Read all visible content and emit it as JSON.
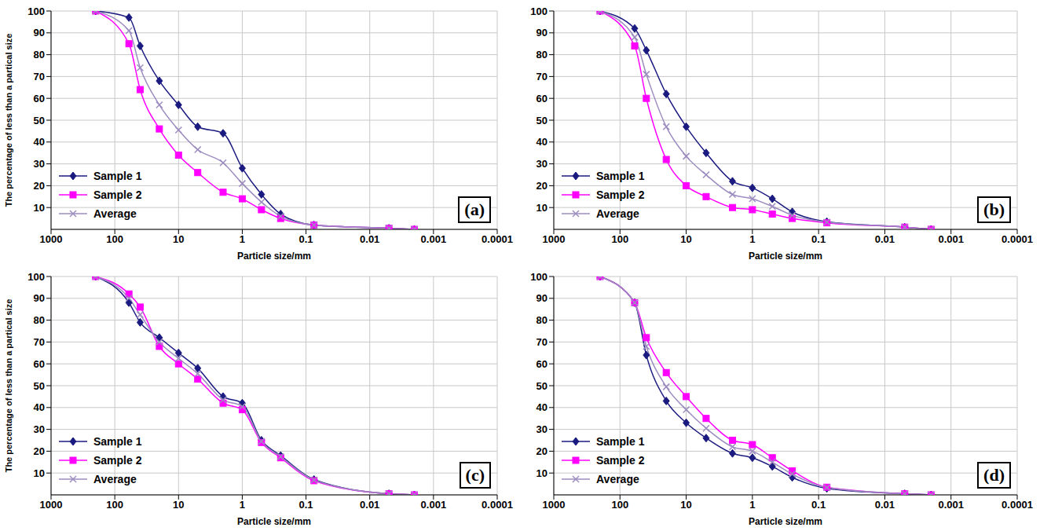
{
  "chart_data": [
    {
      "type": "line",
      "panel_label": "(a)",
      "x_label": "Particle size/mm",
      "y_label": "The percentage of less than a partical size",
      "log": "x",
      "grid": true,
      "legend": "lower left",
      "x": [
        200,
        60,
        40,
        20,
        10,
        5,
        2,
        1,
        0.5,
        0.25,
        0.075,
        0.005,
        0.002
      ],
      "xlim": [
        1000,
        0.0001
      ],
      "xticks": [
        1000,
        100,
        10,
        1,
        0.1,
        0.01,
        0.001,
        0.0001
      ],
      "ylim": [
        0,
        100
      ],
      "yticks": [
        10,
        20,
        30,
        40,
        50,
        60,
        70,
        80,
        90,
        100
      ],
      "series": [
        {
          "name": "Sample 1",
          "color": "#1a1a80",
          "marker": "diamond",
          "values": [
            100,
            97,
            84,
            68,
            57,
            47,
            44,
            28,
            16,
            7,
            2,
            0.5,
            0
          ]
        },
        {
          "name": "Sample 2",
          "color": "#ff00ff",
          "marker": "square",
          "values": [
            100,
            85,
            64,
            46,
            34,
            26,
            17,
            14,
            9,
            5,
            2,
            0.5,
            0
          ]
        },
        {
          "name": "Average",
          "color": "#9c8cc0",
          "marker": "x",
          "values": [
            100,
            91,
            74,
            57,
            45.5,
            36.5,
            30.5,
            21,
            12.5,
            6,
            2,
            0.5,
            0
          ]
        }
      ]
    },
    {
      "type": "line",
      "panel_label": "(b)",
      "x_label": "Particle size/mm",
      "log": "x",
      "grid": true,
      "legend": "lower left",
      "x": [
        200,
        60,
        40,
        20,
        10,
        5,
        2,
        1,
        0.5,
        0.25,
        0.075,
        0.005,
        0.002
      ],
      "xlim": [
        1000,
        0.0001
      ],
      "xticks": [
        1000,
        100,
        10,
        1,
        0.1,
        0.01,
        0.001,
        0.0001
      ],
      "ylim": [
        0,
        100
      ],
      "yticks": [
        10,
        20,
        30,
        40,
        50,
        60,
        70,
        80,
        90,
        100
      ],
      "series": [
        {
          "name": "Sample 1",
          "color": "#1a1a80",
          "marker": "diamond",
          "values": [
            100,
            92,
            82,
            62,
            47,
            35,
            22,
            19,
            14,
            8,
            3.5,
            1,
            0
          ]
        },
        {
          "name": "Sample 2",
          "color": "#ff00ff",
          "marker": "square",
          "values": [
            100,
            84,
            60,
            32,
            20,
            15,
            10,
            9,
            7,
            5,
            3,
            1,
            0
          ]
        },
        {
          "name": "Average",
          "color": "#9c8cc0",
          "marker": "x",
          "values": [
            100,
            88,
            71,
            47,
            33.5,
            25,
            16,
            14,
            10.5,
            6.5,
            3.3,
            1,
            0
          ]
        }
      ]
    },
    {
      "type": "line",
      "panel_label": "(c)",
      "x_label": "Particle size/mm",
      "y_label": "The percentage of less than a partical size",
      "log": "x",
      "grid": true,
      "legend": "lower left",
      "x": [
        200,
        60,
        40,
        20,
        10,
        5,
        2,
        1,
        0.5,
        0.25,
        0.075,
        0.005,
        0.002
      ],
      "xlim": [
        1000,
        0.0001
      ],
      "xticks": [
        1000,
        100,
        10,
        1,
        0.1,
        0.01,
        0.001,
        0.0001
      ],
      "ylim": [
        0,
        100
      ],
      "yticks": [
        10,
        20,
        30,
        40,
        50,
        60,
        70,
        80,
        90,
        100
      ],
      "series": [
        {
          "name": "Sample 1",
          "color": "#1a1a80",
          "marker": "diamond",
          "values": [
            100,
            88,
            79,
            72,
            65,
            58,
            45,
            42,
            25,
            18,
            7,
            0.5,
            0
          ]
        },
        {
          "name": "Sample 2",
          "color": "#ff00ff",
          "marker": "square",
          "values": [
            100,
            92,
            86,
            68,
            60,
            53,
            42,
            39,
            24,
            17,
            6.5,
            0.5,
            0
          ]
        },
        {
          "name": "Average",
          "color": "#9c8cc0",
          "marker": "x",
          "values": [
            100,
            90,
            82.5,
            70,
            62.5,
            55.5,
            43.5,
            40.5,
            24.5,
            17.5,
            6.8,
            0.5,
            0
          ]
        }
      ]
    },
    {
      "type": "line",
      "panel_label": "(d)",
      "x_label": "Particle size/mm",
      "log": "x",
      "grid": true,
      "legend": "lower left",
      "x": [
        200,
        60,
        40,
        20,
        10,
        5,
        2,
        1,
        0.5,
        0.25,
        0.075,
        0.005,
        0.002
      ],
      "xlim": [
        1000,
        0.0001
      ],
      "xticks": [
        1000,
        100,
        10,
        1,
        0.1,
        0.01,
        0.001,
        0.0001
      ],
      "ylim": [
        0,
        100
      ],
      "yticks": [
        10,
        20,
        30,
        40,
        50,
        60,
        70,
        80,
        90,
        100
      ],
      "series": [
        {
          "name": "Sample 1",
          "color": "#1a1a80",
          "marker": "diamond",
          "values": [
            100,
            88,
            64,
            43,
            33,
            26,
            19,
            17,
            13,
            8,
            3,
            0.5,
            0
          ]
        },
        {
          "name": "Sample 2",
          "color": "#ff00ff",
          "marker": "square",
          "values": [
            100,
            88,
            72,
            56,
            45,
            35,
            25,
            23,
            17,
            11,
            3.5,
            0.5,
            0
          ]
        },
        {
          "name": "Average",
          "color": "#9c8cc0",
          "marker": "x",
          "values": [
            100,
            88,
            68,
            49.5,
            39,
            30.5,
            22,
            20,
            15,
            9.5,
            3.3,
            0.5,
            0
          ]
        }
      ]
    }
  ]
}
